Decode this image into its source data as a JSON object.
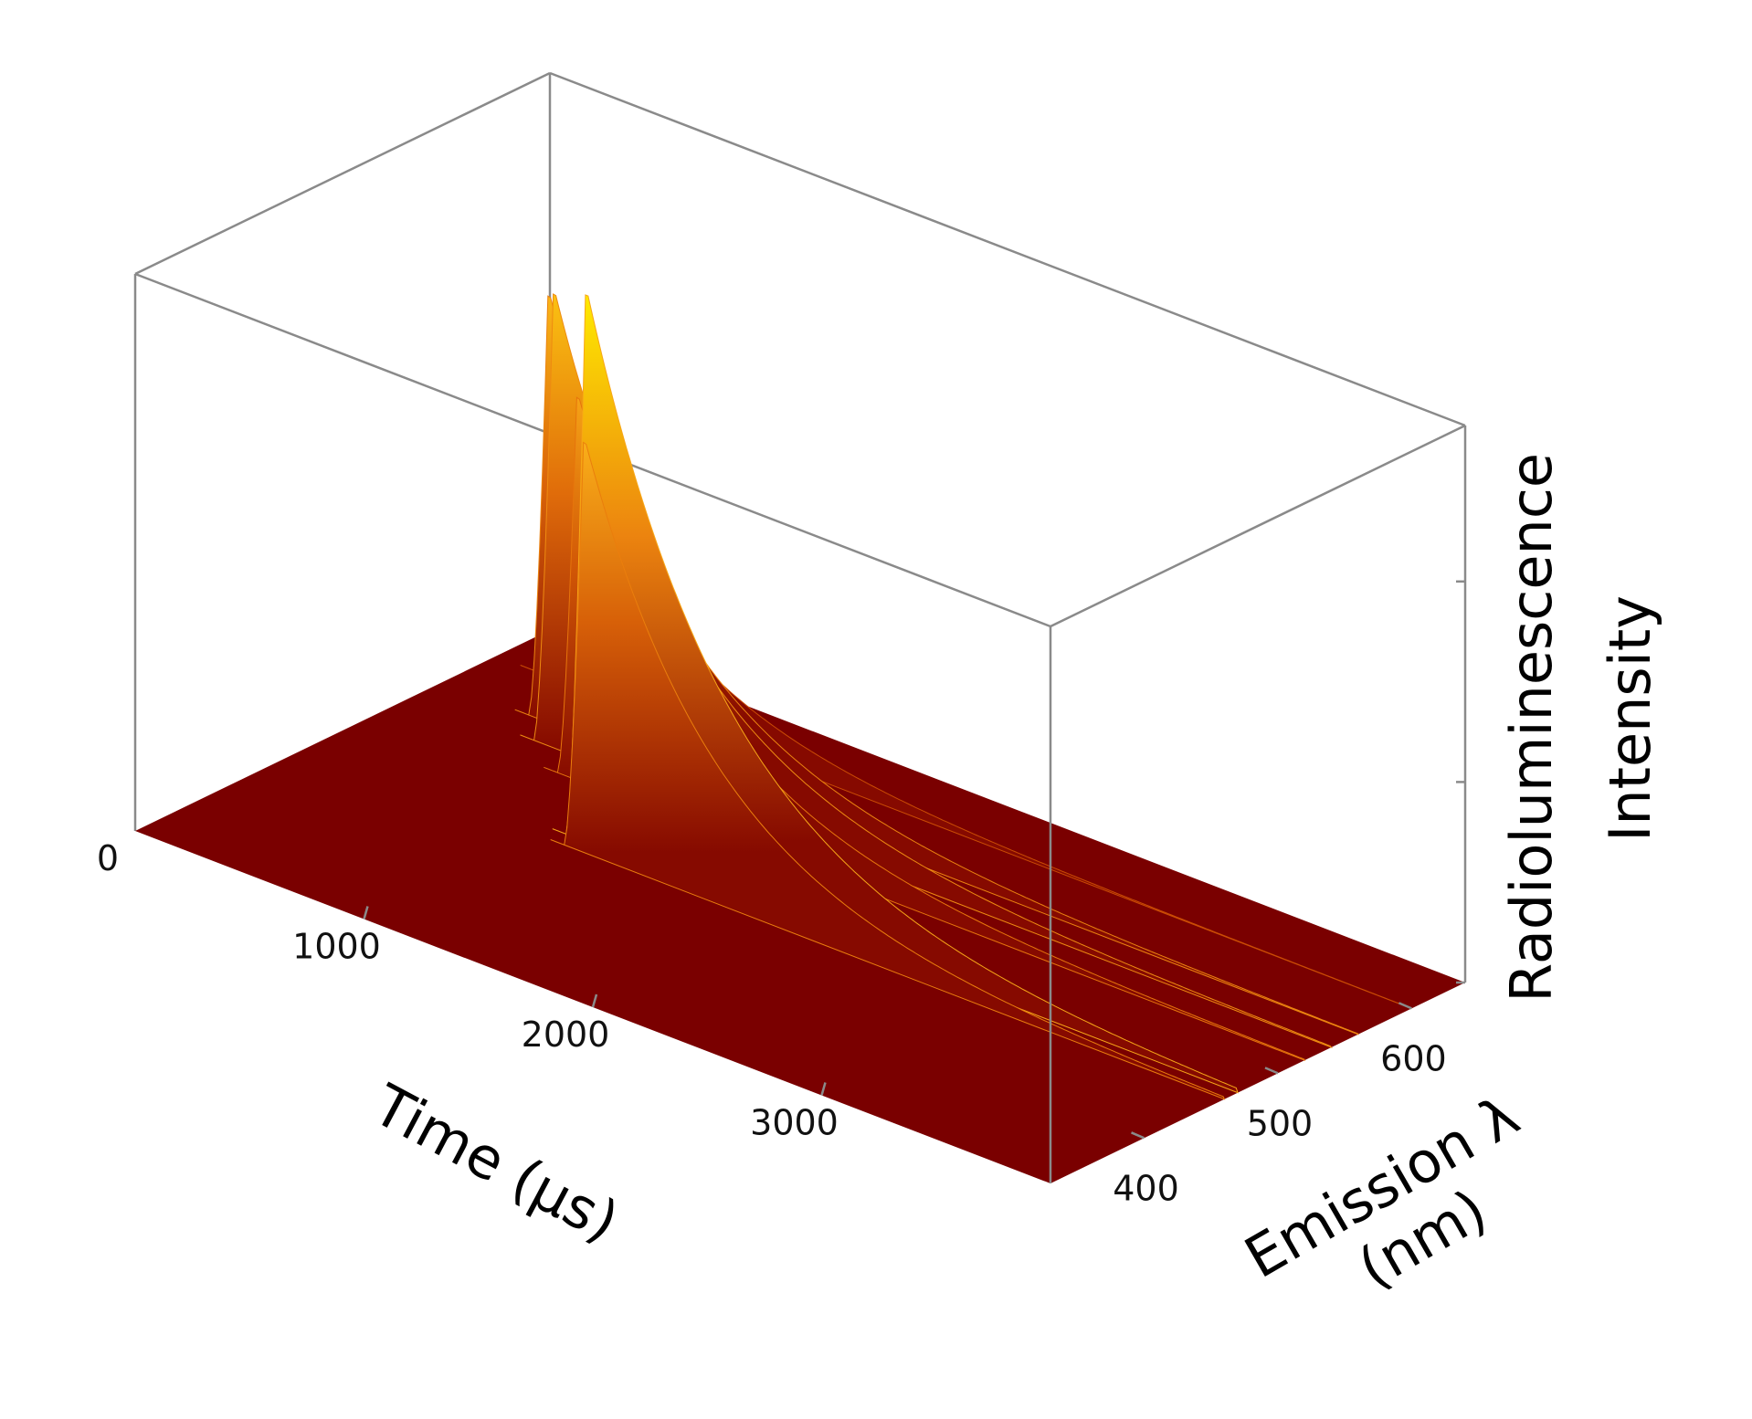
{
  "chart_data": {
    "type": "surface",
    "title": "",
    "xlabel": "Time (μs)",
    "ylabel": "Emission λ (nm)",
    "zlabel": "Radioluminescence Intensity",
    "xlabel_lines": [
      "Time (μs)"
    ],
    "ylabel_lines": [
      "Emission λ",
      "(nm)"
    ],
    "zlabel_lines": [
      "Radioluminescence",
      "Intensity"
    ],
    "xlim": [
      0,
      4000
    ],
    "ylim": [
      330,
      640
    ],
    "zlim": [
      0,
      1
    ],
    "x_ticks": [
      {
        "value": 0,
        "label": "0"
      },
      {
        "value": 1000,
        "label": "1000"
      },
      {
        "value": 2000,
        "label": "2000"
      },
      {
        "value": 3000,
        "label": "3000"
      }
    ],
    "y_ticks": [
      {
        "value": 400,
        "label": "400"
      },
      {
        "value": 500,
        "label": "500"
      },
      {
        "value": 600,
        "label": "600"
      }
    ],
    "grid": false,
    "colormap": [
      "#7a0000",
      "#b83200",
      "#e8780c",
      "#fbb21a",
      "#ffee00"
    ],
    "series": [
      {
        "wavelength": 600,
        "peak_time": 250,
        "peak_intensity": 0.49
      },
      {
        "wavelength": 560,
        "peak_time": 460,
        "peak_intensity": 0.78
      },
      {
        "wavelength": 540,
        "peak_time": 600,
        "peak_intensity": 0.83
      },
      {
        "wavelength": 520,
        "peak_time": 820,
        "peak_intensity": 0.7
      },
      {
        "wavelength": 470,
        "peak_time": 1150,
        "peak_intensity": 1.0
      },
      {
        "wavelength": 460,
        "peak_time": 1200,
        "peak_intensity": 0.75
      }
    ]
  }
}
